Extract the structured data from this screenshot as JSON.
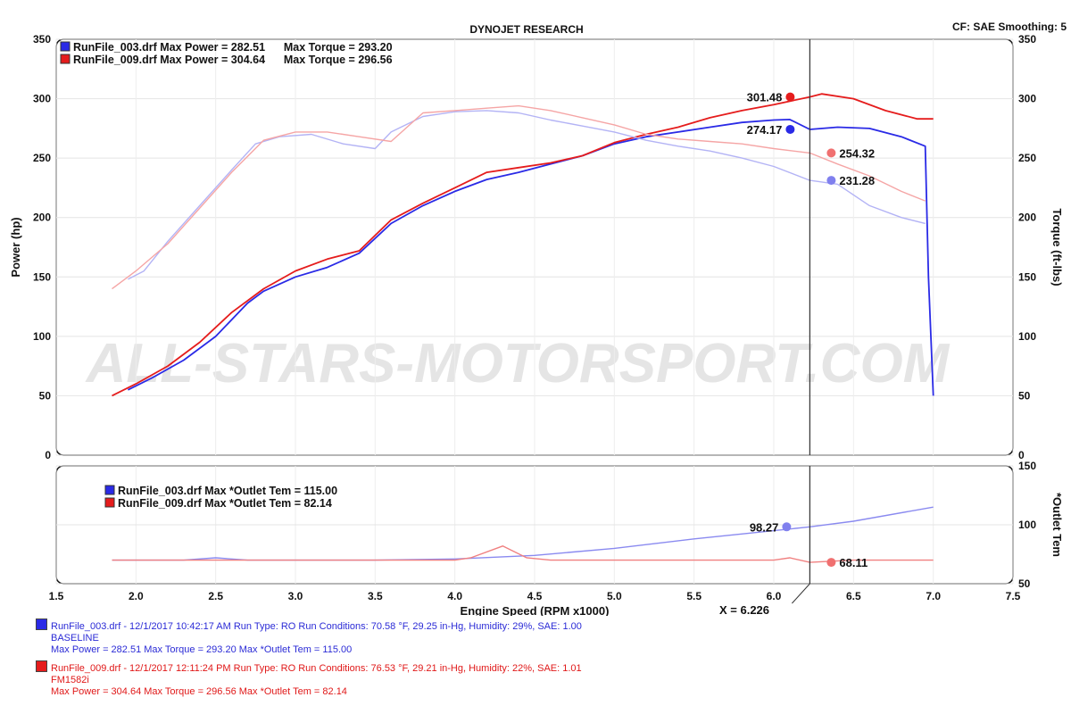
{
  "header": {
    "title": "DYNOJET RESEARCH",
    "settings": "CF: SAE  Smoothing: 5"
  },
  "watermark": "ALL-STARS-MOTORSPORT.COM",
  "colors": {
    "run1_power": "#b3b3f5",
    "run1_torque": "#2a2ae6",
    "run2_power": "#f5a5a5",
    "run2_torque": "#e51c1c",
    "frame": "#000000"
  },
  "chart_data": [
    {
      "type": "line",
      "title": "DYNOJET RESEARCH",
      "xlabel": "Engine Speed (RPM x1000)",
      "ylabel": "Power (hp)",
      "y2label": "Torque (ft-lbs)",
      "xlim": [
        1.5,
        7.5
      ],
      "xticks": [
        "1.5",
        "2.0",
        "2.5",
        "3.0",
        "3.5",
        "4.0",
        "4.5",
        "5.0",
        "5.5",
        "6.0",
        "6.5",
        "7.0",
        "7.5"
      ],
      "ylim": [
        0,
        350
      ],
      "yticks": [
        "0",
        "50",
        "100",
        "150",
        "200",
        "250",
        "300",
        "350"
      ],
      "y2lim": [
        0,
        350
      ],
      "y2ticks": [
        "0",
        "50",
        "100",
        "150",
        "200",
        "250",
        "300",
        "350"
      ],
      "cursor_x": 6.226,
      "cursor_label": "X = 6.226",
      "legend": [
        {
          "text": "RunFile_003.drf Max Power = 282.51      Max Torque = 293.20",
          "color": "#3333dd"
        },
        {
          "text": "RunFile_009.drf Max Power = 304.64      Max Torque = 296.56",
          "color": "#e01818"
        }
      ],
      "series": [
        {
          "name": "RunFile_003.drf Power",
          "axis": "left",
          "x": [
            1.95,
            2.1,
            2.3,
            2.5,
            2.7,
            2.8,
            3.0,
            3.2,
            3.4,
            3.6,
            3.8,
            4.0,
            4.2,
            4.4,
            4.6,
            4.8,
            5.0,
            5.2,
            5.4,
            5.6,
            5.8,
            6.0,
            6.1,
            6.226,
            6.4,
            6.6,
            6.8,
            6.95,
            6.97,
            7.0
          ],
          "y": [
            55,
            65,
            80,
            100,
            128,
            138,
            150,
            158,
            170,
            195,
            210,
            222,
            232,
            238,
            245,
            252,
            262,
            268,
            272,
            276,
            280,
            282,
            282.5,
            274.17,
            276,
            275,
            268,
            260,
            150,
            50
          ]
        },
        {
          "name": "RunFile_009.drf Power",
          "axis": "left",
          "x": [
            1.85,
            2.0,
            2.2,
            2.4,
            2.6,
            2.8,
            3.0,
            3.2,
            3.4,
            3.6,
            3.8,
            4.0,
            4.2,
            4.4,
            4.6,
            4.8,
            5.0,
            5.2,
            5.4,
            5.6,
            5.8,
            6.0,
            6.226,
            6.3,
            6.5,
            6.7,
            6.9,
            7.0
          ],
          "y": [
            50,
            60,
            75,
            95,
            120,
            140,
            155,
            165,
            172,
            198,
            212,
            225,
            238,
            242,
            246,
            252,
            263,
            270,
            276,
            284,
            290,
            295,
            301.48,
            304,
            300,
            290,
            283,
            283
          ]
        },
        {
          "name": "RunFile_003.drf Torque",
          "axis": "right",
          "x": [
            1.95,
            2.05,
            2.2,
            2.4,
            2.6,
            2.75,
            2.9,
            3.1,
            3.3,
            3.5,
            3.6,
            3.8,
            4.0,
            4.2,
            4.4,
            4.6,
            4.8,
            5.0,
            5.2,
            5.4,
            5.6,
            5.8,
            6.0,
            6.226,
            6.4,
            6.6,
            6.8,
            6.95
          ],
          "y": [
            148,
            155,
            180,
            210,
            240,
            262,
            268,
            270,
            262,
            258,
            272,
            285,
            289,
            290,
            288,
            282,
            277,
            272,
            265,
            260,
            256,
            250,
            243,
            231.28,
            228,
            210,
            200,
            195
          ]
        },
        {
          "name": "RunFile_009.drf Torque",
          "axis": "right",
          "x": [
            1.85,
            2.0,
            2.2,
            2.4,
            2.6,
            2.8,
            3.0,
            3.2,
            3.4,
            3.6,
            3.8,
            4.0,
            4.2,
            4.4,
            4.6,
            4.8,
            5.0,
            5.2,
            5.4,
            5.6,
            5.8,
            6.0,
            6.226,
            6.4,
            6.6,
            6.8,
            6.95
          ],
          "y": [
            140,
            155,
            178,
            208,
            238,
            265,
            272,
            272,
            268,
            264,
            288,
            290,
            292,
            294,
            290,
            284,
            278,
            270,
            266,
            264,
            262,
            258,
            254.32,
            245,
            235,
            222,
            214
          ]
        }
      ],
      "cursor_values": [
        {
          "series": "RunFile_009.drf Power",
          "value": "301.48",
          "color": "#e51c1c"
        },
        {
          "series": "RunFile_003.drf Power",
          "value": "274.17",
          "color": "#2a2ae6"
        },
        {
          "series": "RunFile_009.drf Torque",
          "value": "254.32",
          "color": "#f07070"
        },
        {
          "series": "RunFile_003.drf Torque",
          "value": "231.28",
          "color": "#8080ee"
        }
      ]
    },
    {
      "type": "line",
      "y2label": "*Outlet Tem",
      "xlim": [
        1.5,
        7.5
      ],
      "y2lim": [
        50,
        150
      ],
      "y2ticks": [
        "50",
        "100",
        "150"
      ],
      "legend": [
        {
          "text": "RunFile_003.drf Max *Outlet Tem = 115.00",
          "color": "#3333dd"
        },
        {
          "text": "RunFile_009.drf Max *Outlet Tem = 82.14",
          "color": "#e01818"
        }
      ],
      "series": [
        {
          "name": "RunFile_003.drf *Outlet Tem",
          "x": [
            1.85,
            2.3,
            2.5,
            2.7,
            3.0,
            3.5,
            4.0,
            4.5,
            5.0,
            5.5,
            6.0,
            6.226,
            6.5,
            7.0
          ],
          "y": [
            70,
            70,
            72,
            70,
            70,
            70,
            71,
            74,
            80,
            88,
            95,
            98.27,
            103,
            115
          ]
        },
        {
          "name": "RunFile_009.drf *Outlet Tem",
          "x": [
            1.85,
            2.5,
            3.0,
            4.0,
            4.1,
            4.3,
            4.45,
            4.6,
            5.0,
            6.0,
            6.1,
            6.226,
            6.5,
            7.0
          ],
          "y": [
            70,
            70,
            70,
            70,
            72,
            82,
            72,
            70,
            70,
            70,
            72,
            68.11,
            70,
            70
          ]
        }
      ],
      "cursor_values": [
        {
          "series": "RunFile_003.drf *Outlet Tem",
          "value": "98.27",
          "color": "#8080ee"
        },
        {
          "series": "RunFile_009.drf *Outlet Tem",
          "value": "68.11",
          "color": "#f07070"
        }
      ]
    }
  ],
  "run_info": [
    {
      "line1": "RunFile_003.drf - 12/1/2017 10:42:17 AM  Run Type: RO  Run Conditions: 70.58 °F, 29.25 in-Hg,  Humidity:  29%, SAE: 1.00",
      "line2": "BASELINE",
      "line3": "Max Power = 282.51  Max Torque = 293.20  Max *Outlet Tem = 115.00",
      "color": "#2b2bd6"
    },
    {
      "line1": "RunFile_009.drf - 12/1/2017 12:11:24 PM  Run Type: RO  Run Conditions: 76.53 °F, 29.21 in-Hg,  Humidity:  22%, SAE: 1.01",
      "line2": "FM1582i",
      "line3": "Max Power = 304.64  Max Torque = 296.56  Max *Outlet Tem = 82.14",
      "color": "#e01818"
    }
  ]
}
